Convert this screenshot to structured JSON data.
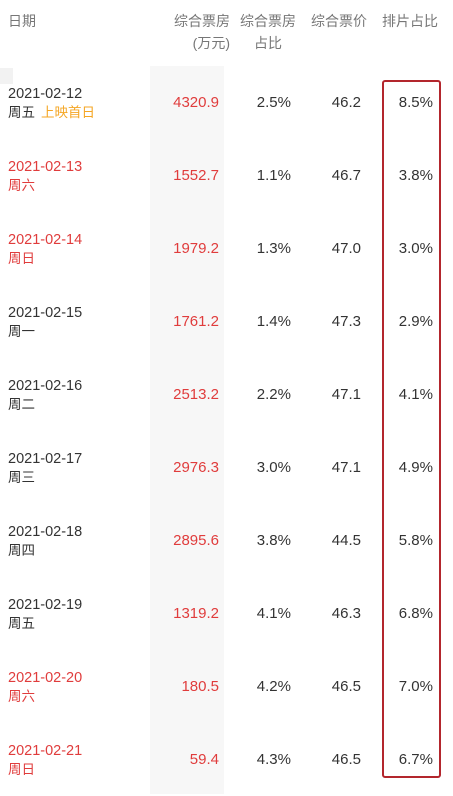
{
  "header": {
    "date": "日期",
    "boxoffice_line1": "综合票房",
    "boxoffice_line2": "(万元)",
    "share_line1": "综合票房",
    "share_line2": "占比",
    "price": "综合票价",
    "schedule": "排片占比"
  },
  "colors": {
    "accent_red": "#e03c3c",
    "note_orange": "#f5a623",
    "highlight_border": "#b3262d",
    "column_shade": "#f7f7f7"
  },
  "rows": [
    {
      "date": "2021-02-12",
      "weekday": "周五",
      "note": "上映首日",
      "weekend": false,
      "boxoffice": "4320.9",
      "share": "2.5%",
      "price": "46.2",
      "schedule": "8.5%"
    },
    {
      "date": "2021-02-13",
      "weekday": "周六",
      "note": "",
      "weekend": true,
      "boxoffice": "1552.7",
      "share": "1.1%",
      "price": "46.7",
      "schedule": "3.8%"
    },
    {
      "date": "2021-02-14",
      "weekday": "周日",
      "note": "",
      "weekend": true,
      "boxoffice": "1979.2",
      "share": "1.3%",
      "price": "47.0",
      "schedule": "3.0%"
    },
    {
      "date": "2021-02-15",
      "weekday": "周一",
      "note": "",
      "weekend": false,
      "boxoffice": "1761.2",
      "share": "1.4%",
      "price": "47.3",
      "schedule": "2.9%"
    },
    {
      "date": "2021-02-16",
      "weekday": "周二",
      "note": "",
      "weekend": false,
      "boxoffice": "2513.2",
      "share": "2.2%",
      "price": "47.1",
      "schedule": "4.1%"
    },
    {
      "date": "2021-02-17",
      "weekday": "周三",
      "note": "",
      "weekend": false,
      "boxoffice": "2976.3",
      "share": "3.0%",
      "price": "47.1",
      "schedule": "4.9%"
    },
    {
      "date": "2021-02-18",
      "weekday": "周四",
      "note": "",
      "weekend": false,
      "boxoffice": "2895.6",
      "share": "3.8%",
      "price": "44.5",
      "schedule": "5.8%"
    },
    {
      "date": "2021-02-19",
      "weekday": "周五",
      "note": "",
      "weekend": false,
      "boxoffice": "1319.2",
      "share": "4.1%",
      "price": "46.3",
      "schedule": "6.8%"
    },
    {
      "date": "2021-02-20",
      "weekday": "周六",
      "note": "",
      "weekend": true,
      "boxoffice": "180.5",
      "share": "4.2%",
      "price": "46.5",
      "schedule": "7.0%"
    },
    {
      "date": "2021-02-21",
      "weekday": "周日",
      "note": "",
      "weekend": true,
      "boxoffice": "59.4",
      "share": "4.3%",
      "price": "46.5",
      "schedule": "6.7%"
    }
  ]
}
